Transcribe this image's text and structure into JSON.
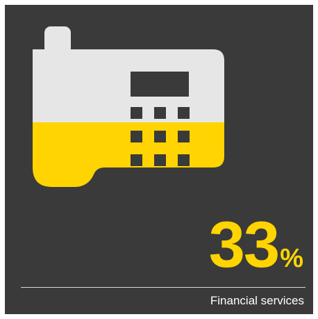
{
  "infographic": {
    "stat_value": "33",
    "stat_unit": "%",
    "category_label": "Financial services",
    "icon": "desk-phone-icon",
    "level_percent": 33
  },
  "colors": {
    "background": "#3a3a3a",
    "accent": "#ffd400",
    "icon_light": "#e6e6e6",
    "text": "#ffffff"
  }
}
